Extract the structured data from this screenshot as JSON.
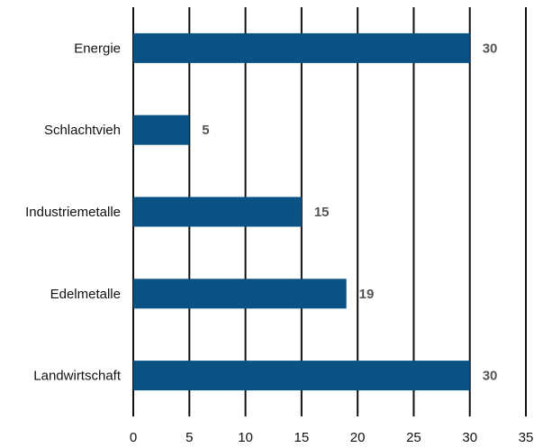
{
  "chart_data": {
    "type": "bar",
    "orientation": "horizontal",
    "categories": [
      "Energie",
      "Schlachtvieh",
      "Industriemetalle",
      "Edelmetalle",
      "Landwirtschaft"
    ],
    "values": [
      30,
      5,
      15,
      19,
      30
    ],
    "data_labels": [
      "30",
      "5",
      "15",
      "19",
      "30"
    ],
    "x_ticks": [
      "0",
      "5",
      "10",
      "15",
      "20",
      "25",
      "30",
      "35"
    ],
    "xlim": [
      0,
      35
    ],
    "grid": "vertical",
    "legend": "none",
    "title": "",
    "xlabel": "",
    "ylabel": "",
    "bar_color": "#0b5284"
  }
}
